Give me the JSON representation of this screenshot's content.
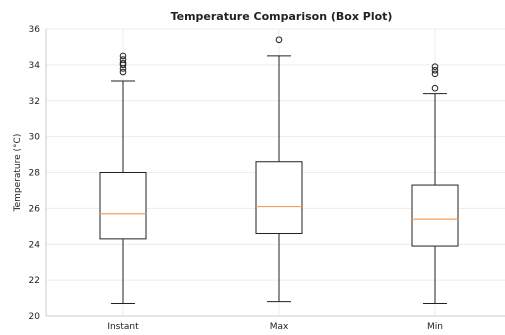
{
  "chart_data": {
    "type": "box",
    "title": "Temperature Comparison (Box Plot)",
    "xlabel": "",
    "ylabel": "Temperature (°C)",
    "ylim": [
      20,
      36
    ],
    "yticks": [
      20,
      22,
      24,
      26,
      28,
      30,
      32,
      34,
      36
    ],
    "grid": true,
    "categories": [
      "Instant",
      "Max",
      "Min"
    ],
    "series": [
      {
        "category": "Instant",
        "whisker_low": 20.7,
        "q1": 24.3,
        "median": 25.7,
        "q3": 28.0,
        "whisker_high": 33.1,
        "outliers": [
          33.6,
          33.8,
          34.0,
          34.1,
          34.3,
          34.5
        ]
      },
      {
        "category": "Max",
        "whisker_low": 20.8,
        "q1": 24.6,
        "median": 26.1,
        "q3": 28.6,
        "whisker_high": 34.5,
        "outliers": [
          35.4
        ]
      },
      {
        "category": "Min",
        "whisker_low": 20.7,
        "q1": 23.9,
        "median": 25.4,
        "q3": 27.3,
        "whisker_high": 32.4,
        "outliers": [
          32.7,
          33.5,
          33.7,
          33.9
        ]
      }
    ],
    "colors": {
      "box_edge": "#222222",
      "median": "#f5a05c",
      "grid": "#ececec",
      "axes": "#cccccc",
      "outlier_edge": "#222222"
    }
  }
}
